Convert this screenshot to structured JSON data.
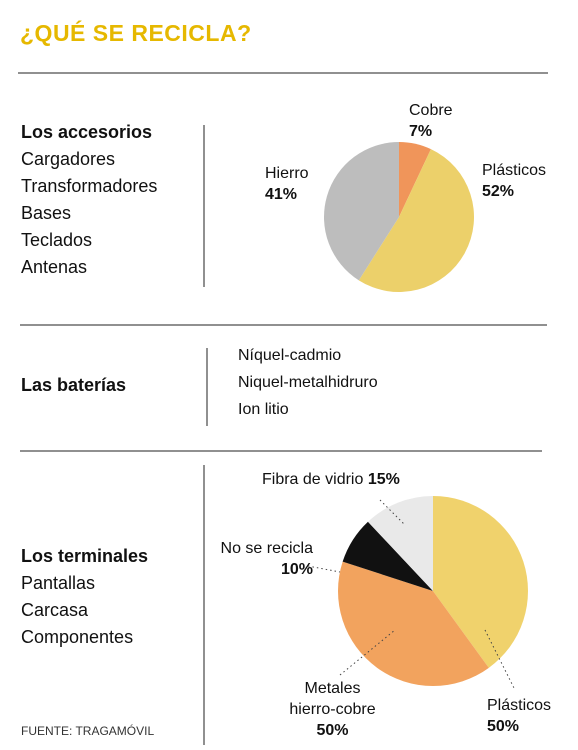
{
  "title": "¿QUÉ SE RECICLA?",
  "sections": [
    {
      "heading": "Los accesorios",
      "items": [
        "Cargadores",
        "Transformadores",
        "Bases",
        "Teclados",
        "Antenas"
      ]
    },
    {
      "heading": "Las baterías",
      "items": [
        "Níquel-cadmio",
        "Niquel-metalhidruro",
        "Ion litio"
      ]
    },
    {
      "heading": "Los terminales",
      "items": [
        "Pantallas",
        "Carcasa",
        "Componentes"
      ]
    }
  ],
  "chart_data": [
    {
      "type": "pie",
      "categories": [
        "Cobre",
        "Plásticos",
        "Hierro"
      ],
      "values": [
        7,
        52,
        41
      ],
      "value_labels": [
        "7%",
        "52%",
        "41%"
      ],
      "colors": [
        "#f0955a",
        "#ecd06a",
        "#bdbdbd"
      ]
    },
    {
      "type": "pie",
      "categories": [
        "Plásticos",
        "Metales hierro-cobre",
        "No se recicla",
        "Fibra de vidrio"
      ],
      "values": [
        50,
        50,
        10,
        15
      ],
      "value_labels": [
        "50%",
        "50%",
        "10%",
        "15%"
      ],
      "colors": [
        "#f0d26c",
        "#f2a35e",
        "#111111",
        "#e9e9e9"
      ]
    }
  ],
  "source": "FUENTE: TRAGAMÓVIL"
}
